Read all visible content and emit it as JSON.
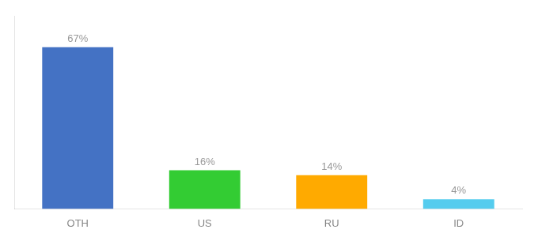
{
  "chart_data": {
    "type": "bar",
    "categories": [
      "OTH",
      "US",
      "RU",
      "ID"
    ],
    "values": [
      67,
      16,
      14,
      4
    ],
    "value_labels": [
      "67%",
      "16%",
      "14%",
      "4%"
    ],
    "colors": [
      "#4472c4",
      "#33cc33",
      "#ffaa00",
      "#55ccee"
    ],
    "ylim": [
      0,
      80
    ],
    "grid": false,
    "data_labels": true,
    "tick_labels": "x"
  }
}
